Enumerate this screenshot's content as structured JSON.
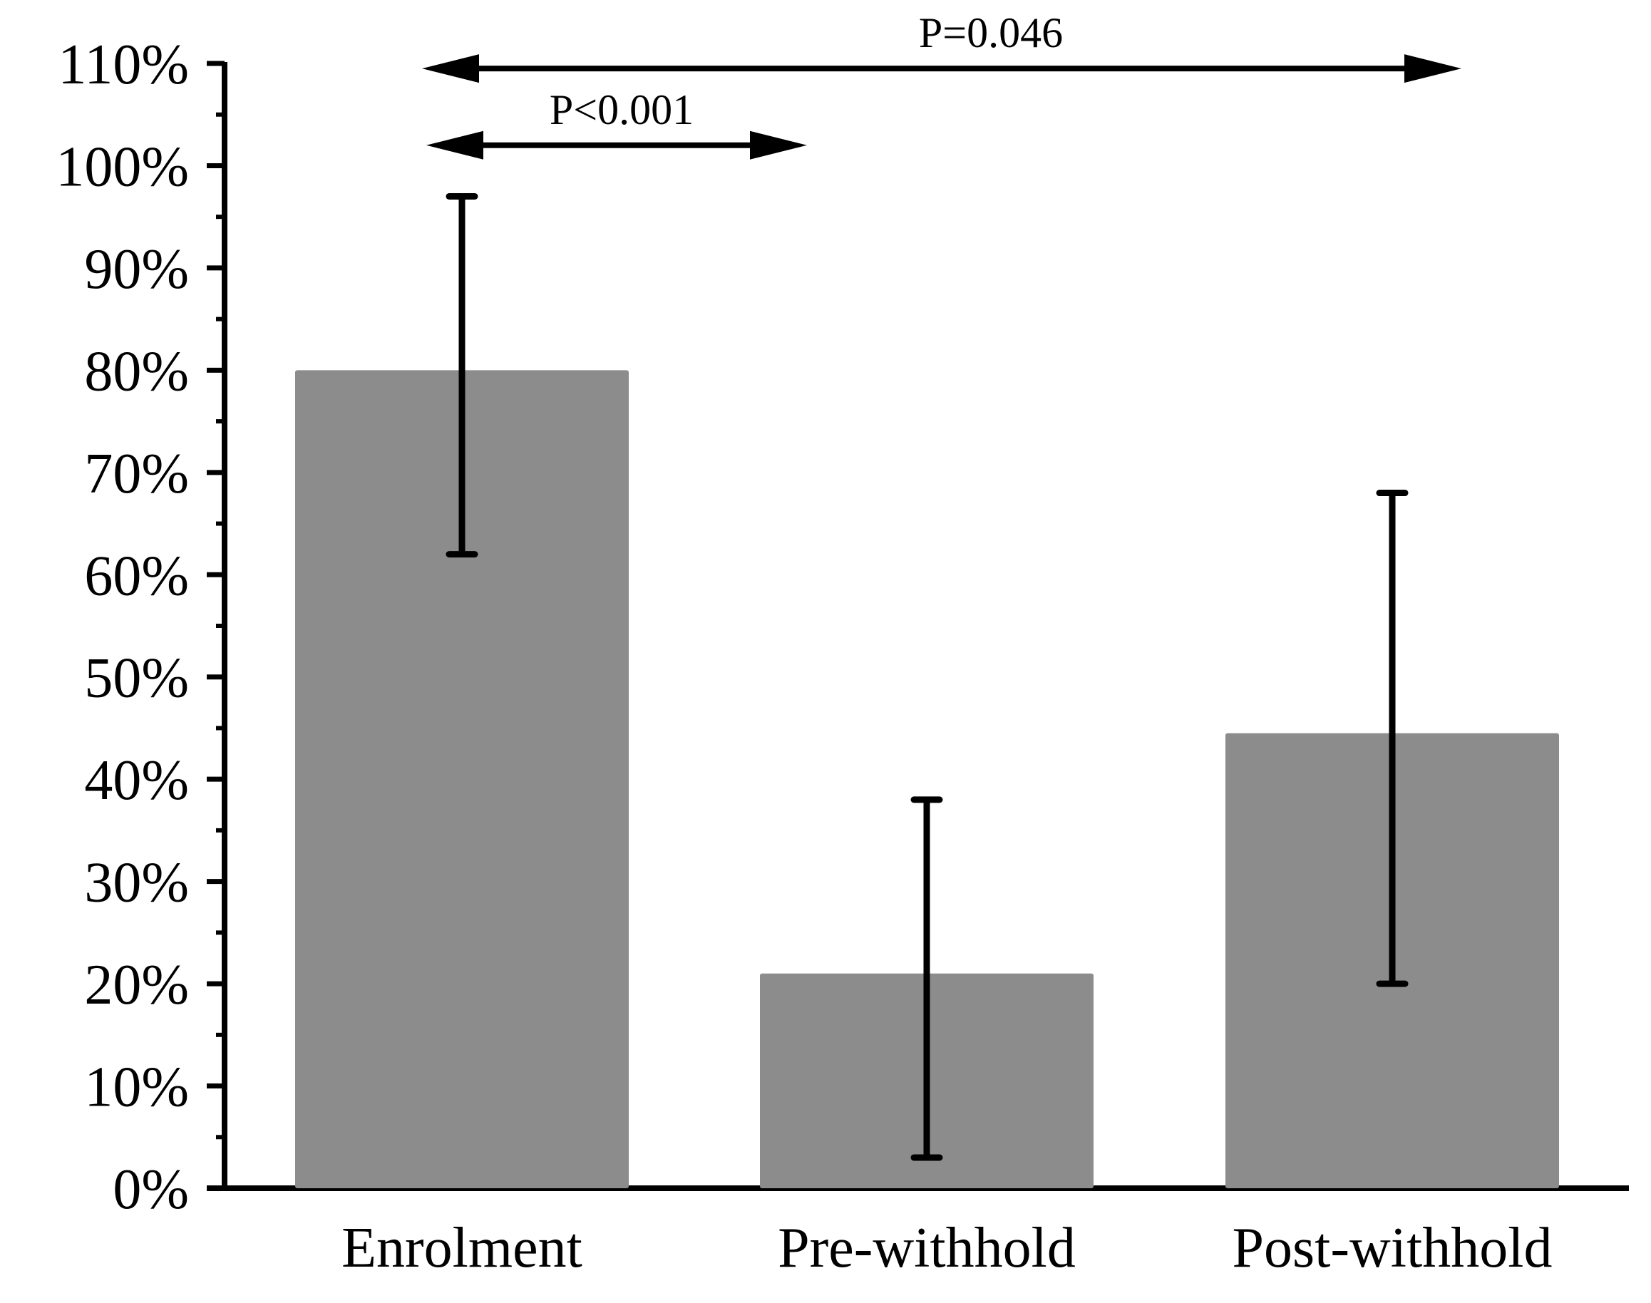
{
  "chart_data": {
    "type": "bar",
    "title": "",
    "xlabel": "",
    "ylabel": "",
    "categories": [
      "Enrolment",
      "Pre-withhold",
      "Post-withhold"
    ],
    "values": [
      80,
      21,
      44.5
    ],
    "error_bars": [
      {
        "low": 62,
        "high": 97
      },
      {
        "low": 3,
        "high": 38
      },
      {
        "low": 20,
        "high": 68
      }
    ],
    "ylim": [
      0,
      110
    ],
    "yticks": [
      0,
      10,
      20,
      30,
      40,
      50,
      60,
      70,
      80,
      90,
      100,
      110
    ],
    "ytick_labels": [
      "0%",
      "10%",
      "20%",
      "30%",
      "40%",
      "50%",
      "60%",
      "70%",
      "80%",
      "90%",
      "100%",
      "110%"
    ],
    "grid": false,
    "colors": {
      "bar": "#8c8c8c",
      "axis": "#000000",
      "error": "#000000"
    },
    "annotations": [
      {
        "text": "P<0.001",
        "from": "Enrolment",
        "to": "Pre-withhold",
        "y": 102
      },
      {
        "text": "P=0.046",
        "from": "Enrolment",
        "to": "Post-withhold",
        "y": 109.5
      }
    ]
  }
}
